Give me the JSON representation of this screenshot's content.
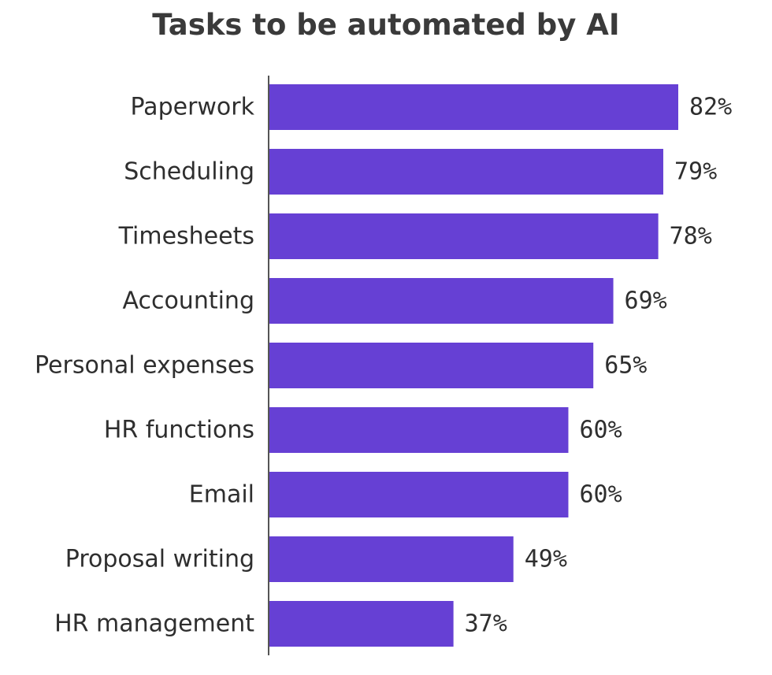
{
  "chart_data": {
    "type": "bar",
    "orientation": "horizontal",
    "title": "Tasks to be automated by AI",
    "categories": [
      "Paperwork",
      "Scheduling",
      "Timesheets",
      "Accounting",
      "Personal expenses",
      "HR functions",
      "Email",
      "Proposal writing",
      "HR management"
    ],
    "values": [
      82,
      79,
      78,
      69,
      65,
      60,
      60,
      49,
      37
    ],
    "value_labels": [
      "82%",
      "79%",
      "78%",
      "69%",
      "65%",
      "60%",
      "60%",
      "49%",
      "37%"
    ],
    "bar_color": "#6640d4",
    "axis_color": "#555555",
    "grid": false,
    "legend": "none"
  }
}
